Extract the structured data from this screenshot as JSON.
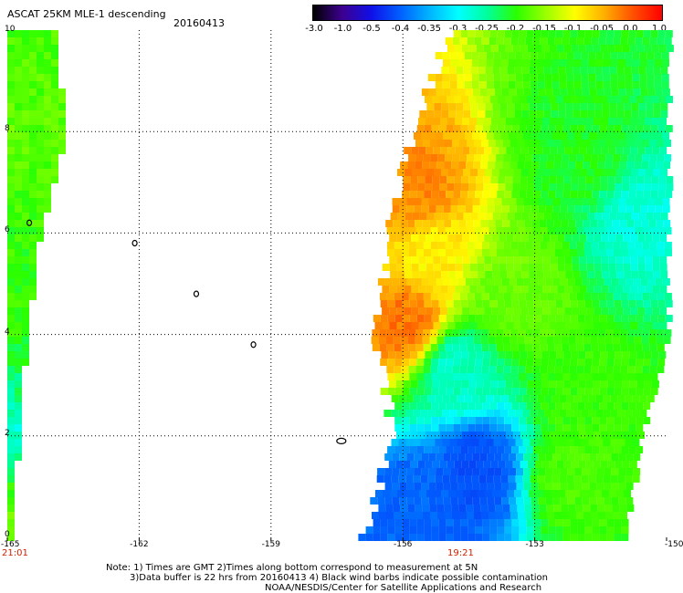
{
  "header": {
    "title": "ASCAT 25KM MLE-1 descending",
    "date": "20160413"
  },
  "colorbar": {
    "labels": [
      "-3.0",
      "-1.0",
      "-0.5",
      "-0.4",
      "-0.35",
      "-0.3",
      "-0.25",
      "-0.2",
      "-0.15",
      "-0.1",
      "-0.05",
      "0.0",
      "1.0"
    ],
    "colors": [
      "#000000",
      "#3d0090",
      "#1010e8",
      "#0060ff",
      "#00b4ff",
      "#00ffff",
      "#00ff9a",
      "#2bff00",
      "#9aff00",
      "#ffff00",
      "#ffb000",
      "#ff5000",
      "#ff0000"
    ]
  },
  "axes": {
    "x_ticks": [
      "-165",
      "-162",
      "-159",
      "-156",
      "-153",
      "-150"
    ],
    "y_ticks": [
      "0",
      "2",
      "4",
      "6",
      "8",
      "10"
    ],
    "times": {
      "left": "21:01",
      "right": "19:21"
    }
  },
  "note": {
    "line1": "Note: 1) Times are GMT 2)Times along bottom correspond to measurement at 5N",
    "line2": "3)Data buffer is 22 hrs from 20160413 4) Black wind barbs indicate possible contamination",
    "line3": "NOAA/NESDIS/Center for Satellite Applications and Research"
  },
  "map": {
    "lon_range": [
      -165,
      -150
    ],
    "lat_range": [
      0,
      10
    ],
    "grid": true,
    "left_swath": {
      "rows": [
        {
          "lat": 9.8,
          "west": -165,
          "east": -164.0,
          "value": -0.18
        },
        {
          "lat": 8.0,
          "west": -165,
          "east": -163.7,
          "value": -0.17
        },
        {
          "lat": 6.0,
          "west": -165,
          "east": -164.3,
          "value": -0.19
        },
        {
          "lat": 4.0,
          "west": -165,
          "east": -164.6,
          "value": -0.2
        },
        {
          "lat": 2.0,
          "west": -165,
          "east": -164.8,
          "value": -0.28
        },
        {
          "lat": 0.5,
          "west": -165,
          "east": -164.9,
          "value": -0.15
        }
      ]
    },
    "right_swath": {
      "rows": [
        {
          "lat": 10.0,
          "west": -154.9,
          "east": -150.0
        },
        {
          "lat": 8.0,
          "west": -155.8,
          "east": -150.0
        },
        {
          "lat": 6.0,
          "west": -156.3,
          "east": -150.0
        },
        {
          "lat": 4.0,
          "west": -156.6,
          "east": -150.0
        },
        {
          "lat": 2.0,
          "west": -156.2,
          "east": -150.6
        },
        {
          "lat": 0.0,
          "west": -156.9,
          "east": -151.0
        }
      ],
      "features": [
        {
          "lon": -155.7,
          "lat": 6.8,
          "value": -0.03
        },
        {
          "lon": -155.9,
          "lat": 4.2,
          "value": -0.02
        },
        {
          "lon": -155.4,
          "lat": 5.6,
          "value": -0.09
        },
        {
          "lon": -152.0,
          "lat": 7.5,
          "value": -0.21
        },
        {
          "lon": -150.6,
          "lat": 6.2,
          "value": -0.28
        },
        {
          "lon": -153.5,
          "lat": 4.8,
          "value": -0.16
        },
        {
          "lon": -154.8,
          "lat": 3.3,
          "value": -0.27
        },
        {
          "lon": -154.3,
          "lat": 1.3,
          "value": -0.42
        },
        {
          "lon": -155.8,
          "lat": 0.5,
          "value": -0.4
        },
        {
          "lon": -152.2,
          "lat": 1.2,
          "value": -0.18
        },
        {
          "lon": -151.8,
          "lat": 2.8,
          "value": -0.19
        }
      ]
    },
    "islands": [
      {
        "lon": -164.5,
        "lat": 6.2
      },
      {
        "lon": -162.1,
        "lat": 5.8
      },
      {
        "lon": -160.7,
        "lat": 4.8
      },
      {
        "lon": -159.4,
        "lat": 3.8
      },
      {
        "lon": -157.4,
        "lat": 1.9
      }
    ]
  }
}
